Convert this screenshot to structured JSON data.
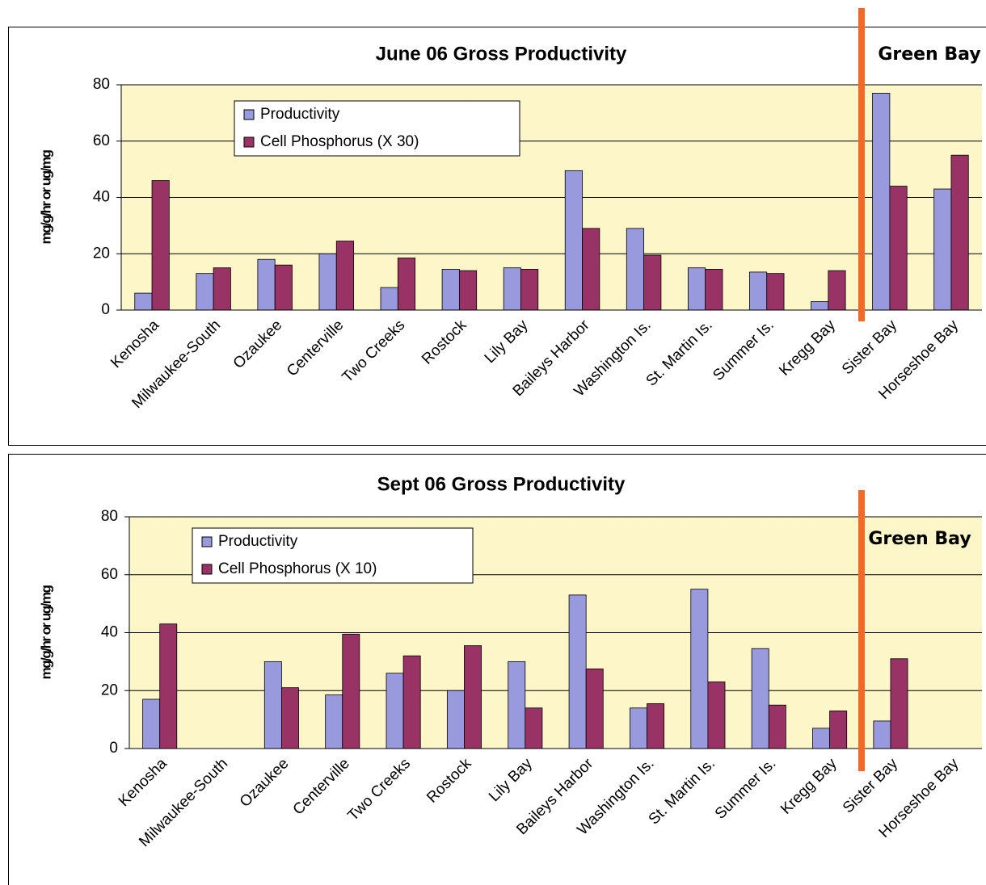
{
  "chart_data": [
    {
      "type": "bar",
      "title": "June 06 Gross Productivity",
      "y_label": "mg/g/hr or ug/mg",
      "annotation": "Green Bay",
      "categories": [
        "Kenosha",
        "Milwaukee-South",
        "Ozaukee",
        "Centerville",
        "Two Creeks",
        "Rostock",
        "Lily Bay",
        "Baileys Harbor",
        "Washington Is.",
        "St. Martin Is.",
        "Summer Is.",
        "Kregg Bay",
        "Sister Bay",
        "Horseshoe Bay"
      ],
      "series": [
        {
          "name": "Productivity",
          "color": "#9999dd",
          "values": [
            6,
            13,
            18,
            20,
            8,
            14.5,
            15,
            49.5,
            29,
            15,
            13.5,
            3,
            77,
            43
          ]
        },
        {
          "name": "Cell Phosphorus (X 30)",
          "color": "#993366",
          "values": [
            46,
            15,
            16,
            24.5,
            18.5,
            14,
            14.5,
            29,
            19.5,
            14.5,
            13,
            14,
            44,
            55
          ]
        }
      ],
      "ylim": [
        0,
        80
      ],
      "yticks": [
        0,
        20,
        40,
        60,
        80
      ],
      "grid": true,
      "legend": "upper-left"
    },
    {
      "type": "bar",
      "title": "Sept 06 Gross Productivity",
      "y_label": "mg/g/hr or ug/mg",
      "annotation": "Green Bay",
      "categories": [
        "Kenosha",
        "Milwaukee-South",
        "Ozaukee",
        "Centerville",
        "Two Creeks",
        "Rostock",
        "Lily Bay",
        "Baileys Harbor",
        "Washington Is.",
        "St. Martin Is.",
        "Summer Is.",
        "Kregg Bay",
        "Sister Bay",
        "Horseshoe Bay"
      ],
      "series": [
        {
          "name": "Productivity",
          "color": "#9999dd",
          "values": [
            17,
            null,
            30,
            18.5,
            26,
            20,
            30,
            53,
            14,
            55,
            34.5,
            7,
            9.5,
            null
          ]
        },
        {
          "name": "Cell Phosphorus (X 10)",
          "color": "#993366",
          "values": [
            43,
            null,
            21,
            39.5,
            32,
            35.5,
            14,
            27.5,
            15.5,
            23,
            15,
            13,
            31,
            null
          ]
        }
      ],
      "ylim": [
        0,
        80
      ],
      "yticks": [
        0,
        20,
        40,
        60,
        80
      ],
      "grid": true,
      "legend": "upper-left"
    }
  ]
}
